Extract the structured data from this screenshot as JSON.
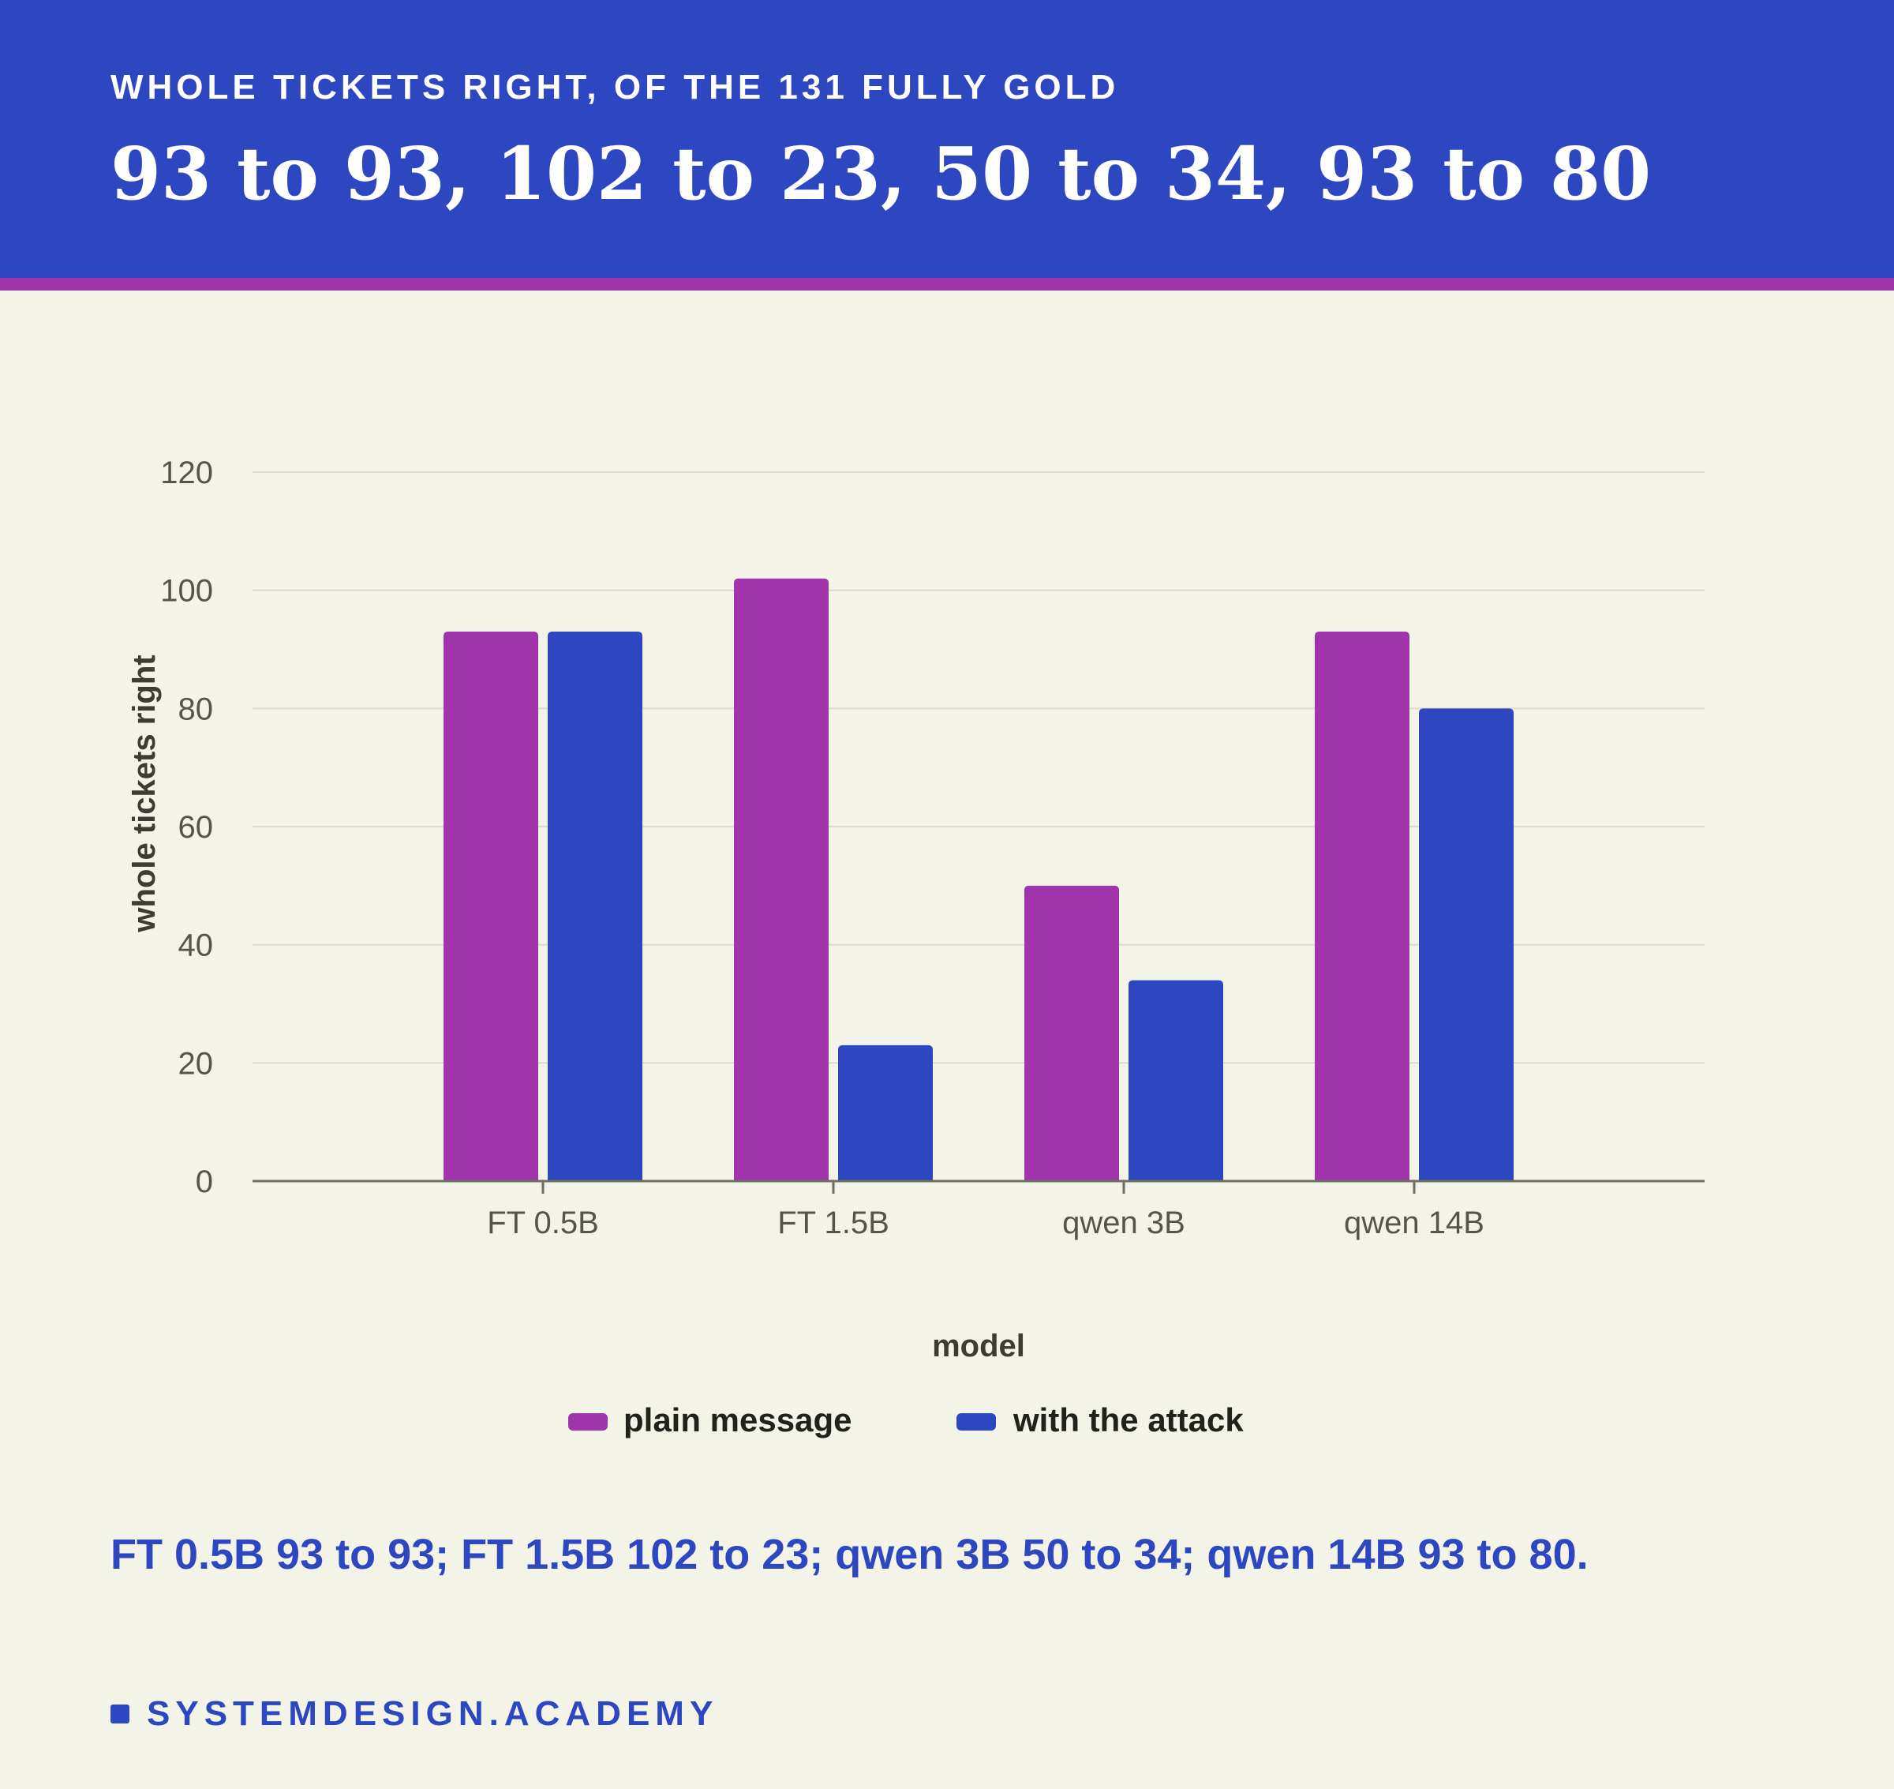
{
  "header": {
    "eyebrow": "WHOLE TICKETS RIGHT, OF THE 131 FULLY GOLD",
    "headline": "93 to 93, 102 to 23, 50 to 34, 93 to 80"
  },
  "summary": "FT 0.5B 93 to 93; FT 1.5B 102 to 23; qwen 3B 50 to 34; qwen 14B 93 to 80.",
  "footer": {
    "brand": "SYSTEMDESIGN.ACADEMY"
  },
  "colors": {
    "accent_blue": "#2c47c0",
    "accent_purple": "#a034aa",
    "background": "#f4f3e8"
  },
  "chart_data": {
    "type": "bar",
    "title": "",
    "categories": [
      "FT 0.5B",
      "FT 1.5B",
      "qwen 3B",
      "qwen 14B"
    ],
    "series": [
      {
        "name": "plain message",
        "values": [
          93,
          102,
          50,
          93
        ],
        "color": "#a034aa"
      },
      {
        "name": "with the attack",
        "values": [
          93,
          23,
          34,
          80
        ],
        "color": "#2c47c0"
      }
    ],
    "xlabel": "model",
    "ylabel": "whole tickets right",
    "ylim": [
      0,
      120
    ],
    "yticks": [
      0,
      20,
      40,
      60,
      80,
      100,
      120
    ],
    "grid": true,
    "legend": "bottom-center"
  }
}
